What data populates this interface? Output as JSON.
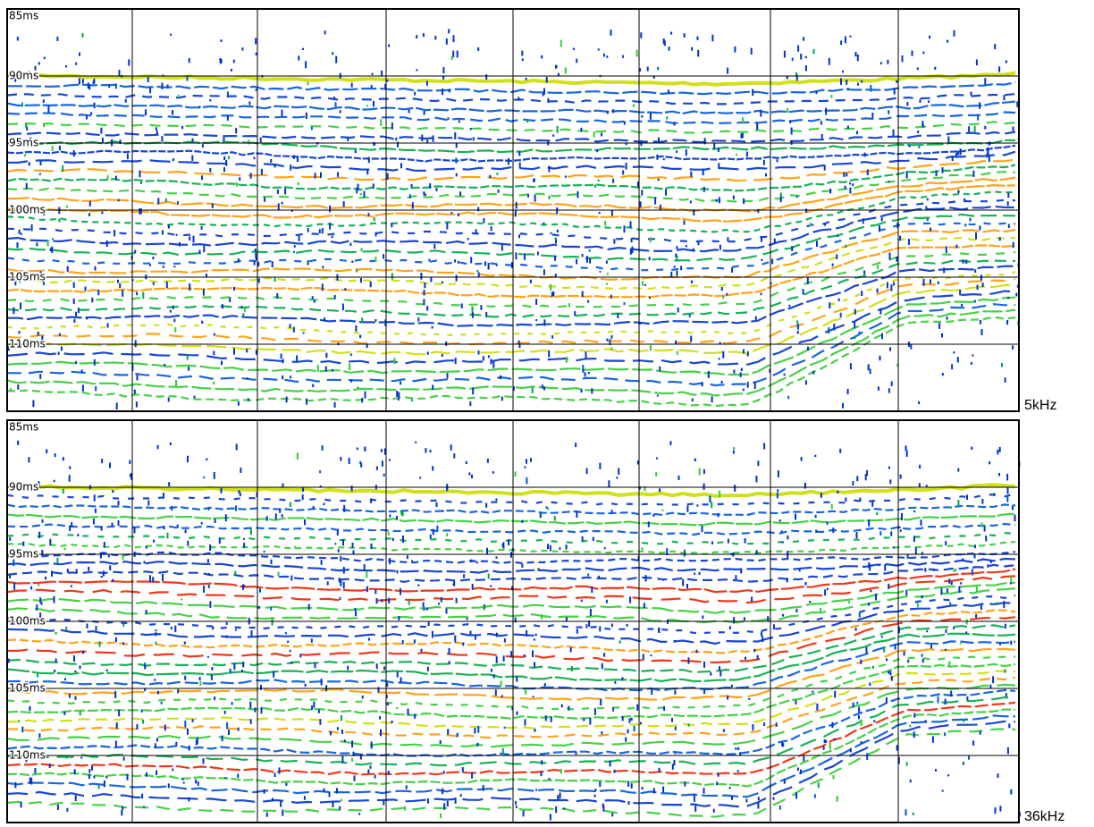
{
  "chart_data": [
    {
      "type": "echogram",
      "label": "5kHz",
      "ylim": [
        85,
        115
      ],
      "y_reversed": true,
      "grid": true,
      "yticks": [
        {
          "value": 85,
          "label": "85ms"
        },
        {
          "value": 90,
          "label": "90ms"
        },
        {
          "value": 95,
          "label": "95ms"
        },
        {
          "value": 100,
          "label": "100ms"
        },
        {
          "value": 105,
          "label": "105ms"
        },
        {
          "value": 110,
          "label": "110ms"
        }
      ]
    },
    {
      "type": "echogram",
      "label": "36kHz",
      "ylim": [
        85,
        115
      ],
      "y_reversed": true,
      "grid": true,
      "yticks": [
        {
          "value": 85,
          "label": "85ms"
        },
        {
          "value": 90,
          "label": "90ms"
        },
        {
          "value": 95,
          "label": "95ms"
        },
        {
          "value": 100,
          "label": "100ms"
        },
        {
          "value": 105,
          "label": "105ms"
        },
        {
          "value": 110,
          "label": "110ms"
        }
      ]
    }
  ]
}
